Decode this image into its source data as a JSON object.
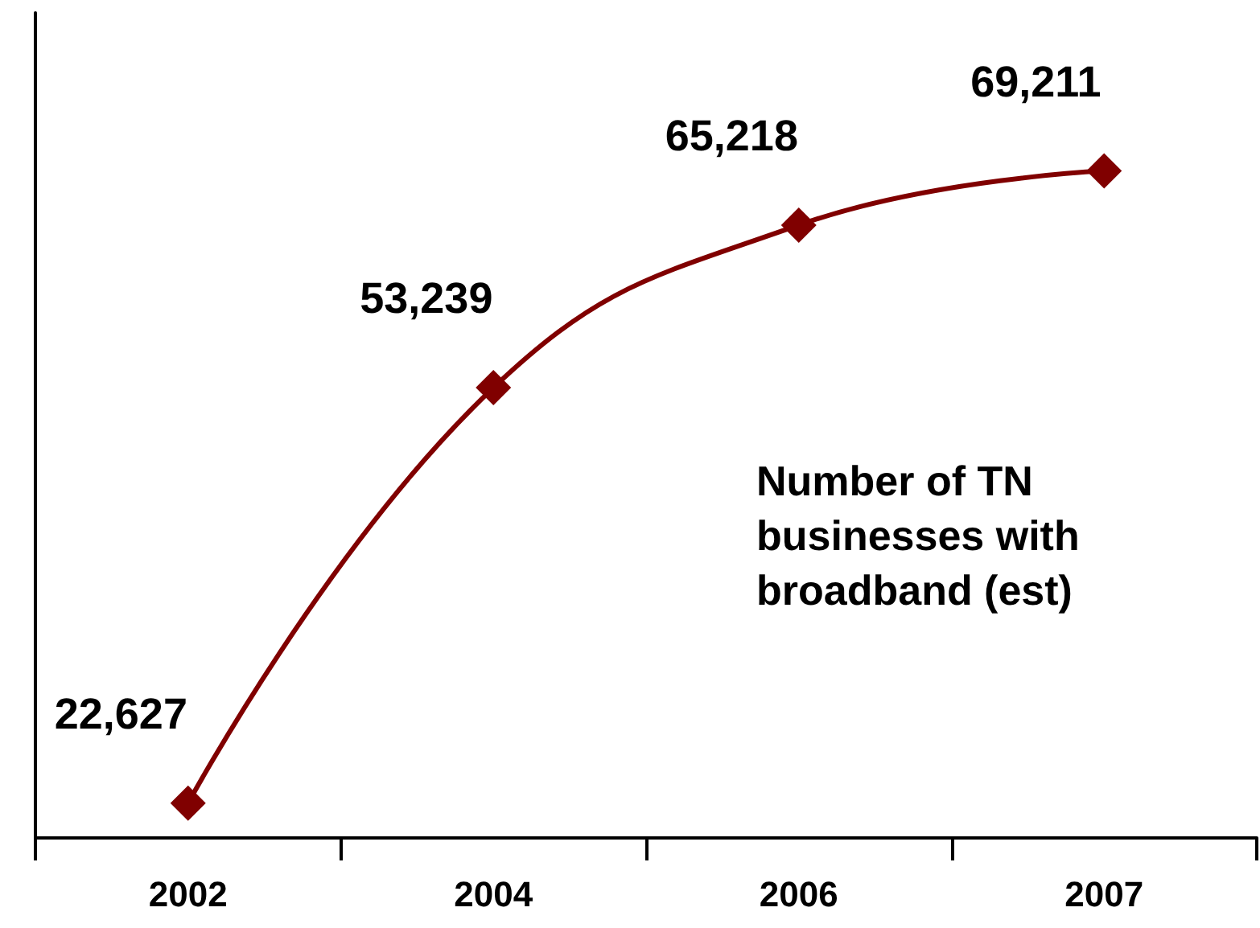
{
  "chart_data": {
    "type": "line",
    "categories": [
      "2002",
      "2004",
      "2006",
      "2007"
    ],
    "series": [
      {
        "color": "#800000",
        "values": [
          22627,
          53239,
          65218,
          69211
        ],
        "value_labels": [
          "22,627",
          "53,239",
          "65,218",
          "69,211"
        ]
      }
    ],
    "marker": "diamond",
    "line_style": "solid",
    "grid": false,
    "tick_labels": "x",
    "annotations": [
      "Number of TN businesses with broadband (est)"
    ]
  }
}
